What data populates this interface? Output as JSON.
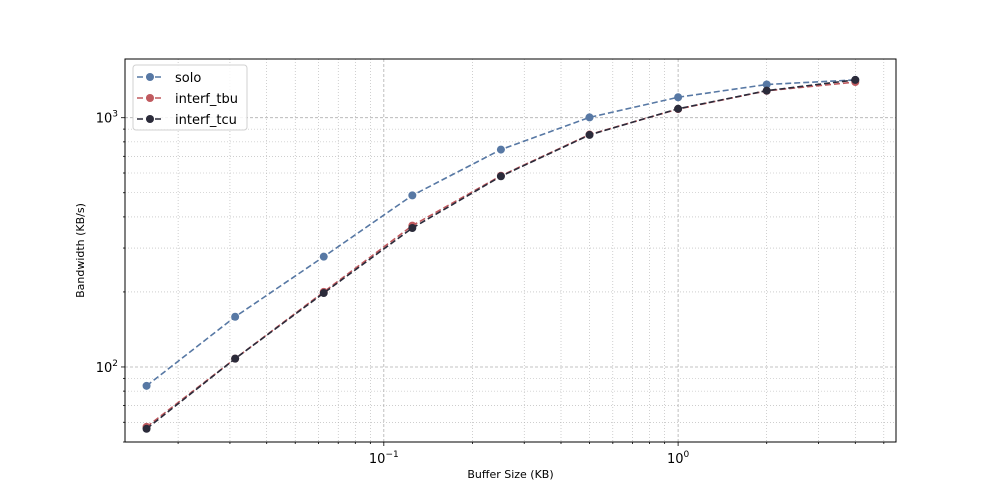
{
  "chart_data": {
    "type": "line",
    "title": "",
    "xlabel": "Buffer Size (KB)",
    "ylabel": "Bandwidth (KB/s)",
    "xscale": "log",
    "yscale": "log",
    "xlim": [
      0.0132,
      5.5
    ],
    "ylim": [
      50,
      1720
    ],
    "grid": true,
    "legend_position": "top-left",
    "x": [
      0.015625,
      0.03125,
      0.0625,
      0.125,
      0.25,
      0.5,
      1,
      2,
      4
    ],
    "series": [
      {
        "name": "solo",
        "color": "#5778a4",
        "values": [
          84,
          159,
          277,
          488,
          745,
          1003,
          1208,
          1359,
          1418
        ]
      },
      {
        "name": "interf_tbu",
        "color": "#c05a5f",
        "values": [
          57.5,
          108,
          200,
          369,
          585,
          856,
          1083,
          1282,
          1390
        ]
      },
      {
        "name": "interf_tcu",
        "color": "#2b2b3a",
        "values": [
          56.5,
          108,
          198,
          361,
          582,
          853,
          1086,
          1284,
          1418
        ]
      }
    ],
    "x_major_ticks": [
      {
        "value": 0.1,
        "base": "10",
        "exp": "−1"
      },
      {
        "value": 1,
        "base": "10",
        "exp": "0"
      }
    ],
    "y_major_ticks": [
      {
        "value": 100,
        "base": "10",
        "exp": "2"
      },
      {
        "value": 1000,
        "base": "10",
        "exp": "3"
      }
    ]
  }
}
